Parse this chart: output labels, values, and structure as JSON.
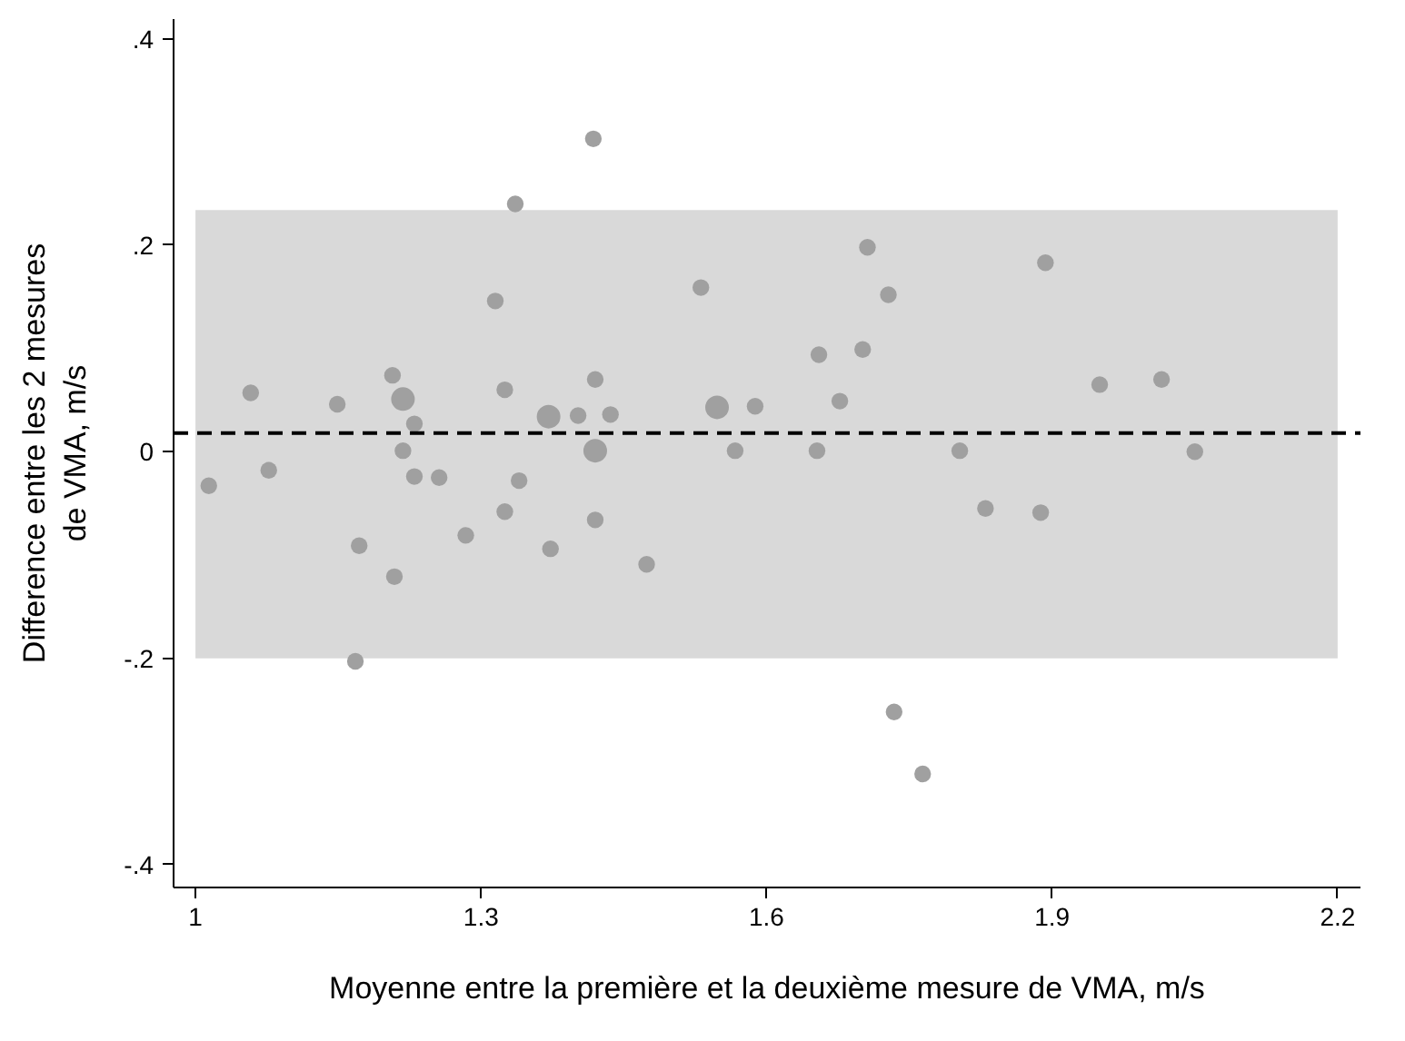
{
  "chart_data": {
    "type": "bubble",
    "xlabel": "Moyenne entre la première et la deuxième mesure de VMA, m/s",
    "ylabel": "Difference entre les 2 mesures\nde VMA, m/s",
    "xlim": [
      0.977,
      2.224
    ],
    "ylim": [
      -0.422,
      0.419
    ],
    "xticks": [
      1,
      1.3,
      1.6,
      1.9,
      2.2
    ],
    "yticks": [
      {
        "value": 0.4,
        "label": ".4"
      },
      {
        "value": 0.2,
        "label": ".2"
      },
      0,
      {
        "value": -0.2,
        "label": "-.2"
      },
      {
        "value": -0.4,
        "label": "-.4"
      }
    ],
    "grid": false,
    "bands": [
      {
        "axis": "y",
        "from": -0.2,
        "to": 0.234,
        "color": "#d9d9d9"
      }
    ],
    "ref_lines": [
      {
        "axis": "y",
        "value": 0.018,
        "color": "#000000",
        "line_style": "dashed"
      }
    ],
    "series": [
      {
        "color": "#a0a0a0",
        "x": [
          1.418,
          1.336,
          1.315,
          1.058,
          1.149,
          1.207,
          1.218,
          1.23,
          1.325,
          1.371,
          1.402,
          1.42,
          1.436,
          1.42,
          1.014,
          1.077,
          1.218,
          1.23,
          1.256,
          1.34,
          1.325,
          1.42,
          1.284,
          1.373,
          1.172,
          1.209,
          1.168,
          1.531,
          1.706,
          1.728,
          1.893,
          1.655,
          1.701,
          1.548,
          1.588,
          1.677,
          1.567,
          1.653,
          1.803,
          1.83,
          1.888,
          1.474,
          1.734,
          1.764,
          1.95,
          2.015,
          2.05
        ],
        "values": [
          0.303,
          0.24,
          0.146,
          0.057,
          0.046,
          0.074,
          0.051,
          0.027,
          0.06,
          0.034,
          0.035,
          0.07,
          0.036,
          0.001,
          -0.033,
          -0.018,
          0.001,
          -0.024,
          -0.025,
          -0.028,
          -0.058,
          -0.066,
          -0.081,
          -0.094,
          -0.091,
          -0.121,
          -0.203,
          0.159,
          0.198,
          0.152,
          0.183,
          0.094,
          0.099,
          0.043,
          0.044,
          0.049,
          0.001,
          0.001,
          0.001,
          -0.055,
          -0.059,
          -0.109,
          -0.252,
          -0.312,
          0.065,
          0.07,
          0.0
        ],
        "sizes": [
          0.5,
          0.5,
          0.5,
          0.5,
          0.5,
          0.5,
          1,
          0.5,
          0.5,
          1,
          0.5,
          0.5,
          0.5,
          1,
          0.5,
          0.5,
          0.5,
          0.5,
          0.5,
          0.5,
          0.5,
          0.5,
          0.5,
          0.5,
          0.5,
          0.5,
          0.5,
          0.5,
          0.5,
          0.5,
          0.5,
          0.5,
          0.5,
          1,
          0.5,
          0.5,
          0.5,
          0.5,
          0.5,
          0.5,
          0.5,
          0.5,
          0.5,
          0.5,
          0.5,
          0.5,
          0.5
        ]
      }
    ]
  }
}
